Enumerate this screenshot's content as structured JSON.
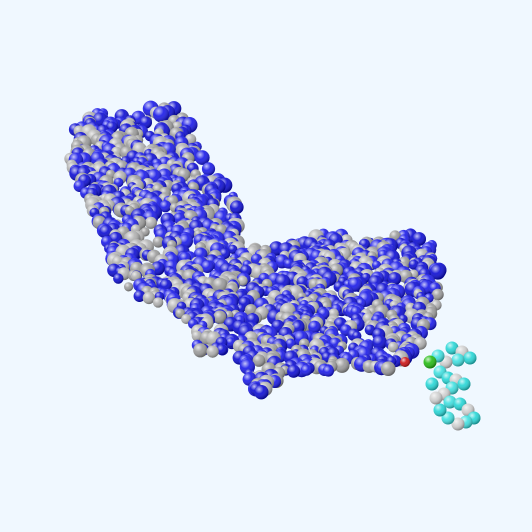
{
  "scene": {
    "background": "#f0f8ff",
    "style": "space-filling",
    "protein": {
      "atom_colors": [
        "#0a0ad2",
        "#9a9a9a",
        "#1818e8",
        "#b0b0b0"
      ],
      "highlight_color": "#cc1111"
    },
    "ligand": {
      "atom_colors": [
        "#25d6d6",
        "#cfcfcf",
        "#3ee0e0"
      ],
      "accent_color": "#22bb11"
    }
  }
}
